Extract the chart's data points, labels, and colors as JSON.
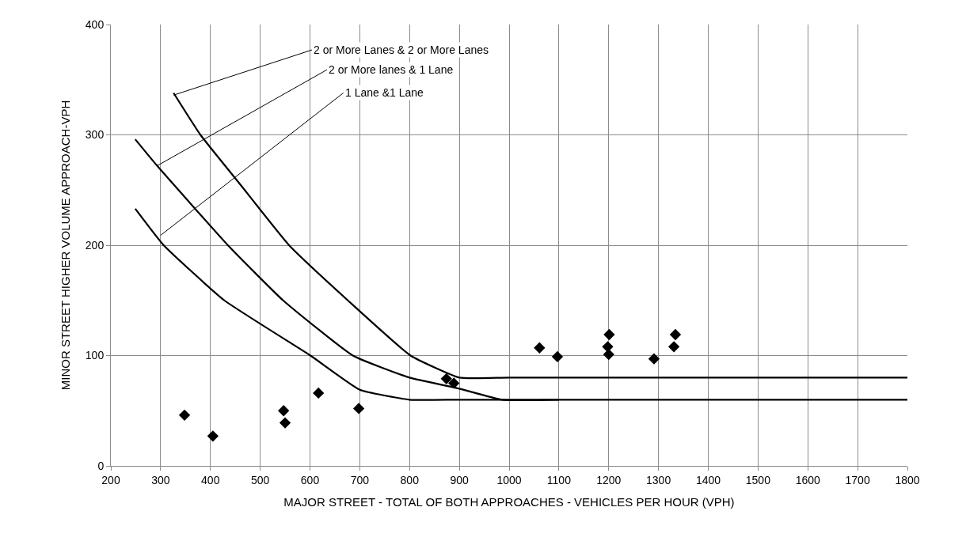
{
  "chart_data": {
    "type": "line",
    "xlabel": "MAJOR STREET - TOTAL OF BOTH APPROACHES - VEHICLES PER HOUR (VPH)",
    "ylabel": "MINOR STREET HIGHER VOLUME APPROACH-VPH",
    "xlim": [
      200,
      1800
    ],
    "xticks": [
      200,
      300,
      400,
      500,
      600,
      700,
      800,
      900,
      1000,
      1100,
      1200,
      1300,
      1400,
      1500,
      1600,
      1700,
      1800
    ],
    "ylim": [
      0,
      400
    ],
    "yticks": [
      0,
      100,
      200,
      300,
      400
    ],
    "grid": true,
    "series": [
      {
        "color": "#000000",
        "marker": "none",
        "x": [
          326,
          380,
          460,
          558,
          676,
          802,
          900,
          1000,
          1800
        ],
        "values": [
          338,
          300,
          255,
          200,
          150,
          100,
          80,
          80,
          80
        ]
      },
      {
        "color": "#000000",
        "marker": "none",
        "x": [
          249,
          293,
          435,
          546,
          686,
          800,
          900,
          985,
          1100
        ],
        "values": [
          296,
          272,
          200,
          150,
          100,
          80,
          70,
          60,
          60
        ]
      },
      {
        "color": "#000000",
        "marker": "none",
        "x": [
          249,
          306,
          428,
          601,
          700,
          800,
          900,
          1800
        ],
        "values": [
          233,
          200,
          150,
          100,
          69,
          60,
          60,
          60
        ]
      },
      {
        "type": "scatter",
        "color": "#000000",
        "marker": "diamond",
        "x": [
          348,
          405,
          547,
          550,
          617,
          698,
          874,
          889,
          1061,
          1097,
          1201,
          1198,
          1200,
          1291,
          1334,
          1331
        ],
        "values": [
          46,
          27,
          50,
          39,
          66,
          52,
          79,
          75,
          107,
          99,
          119,
          108,
          101,
          97,
          119,
          108
        ]
      }
    ],
    "annotations": [
      {
        "text": "2 or More Lanes & 2 or More Lanes",
        "x": 326,
        "y": 336
      },
      {
        "text": "2 or More lanes & 1 Lane",
        "x": 293,
        "y": 272
      },
      {
        "text": "1 Lane &1 Lane",
        "x": 300,
        "y": 209
      }
    ]
  }
}
